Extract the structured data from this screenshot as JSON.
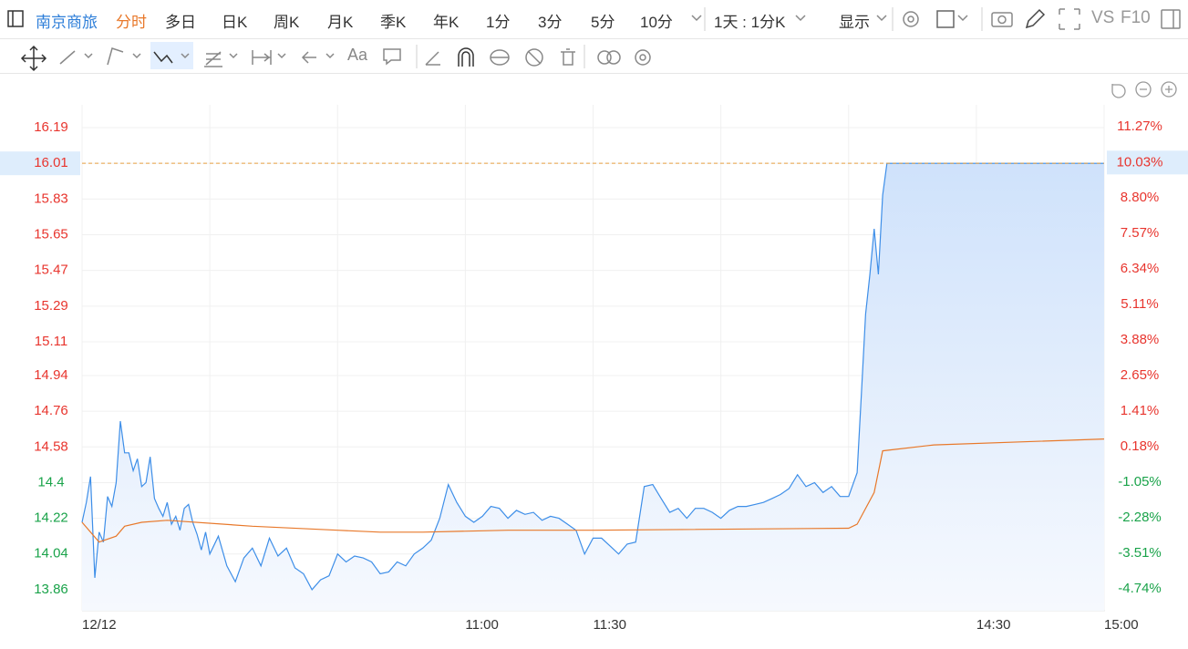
{
  "toolbar": {
    "symbol": "南京商旅",
    "periods": [
      "分时",
      "多日",
      "日K",
      "周K",
      "月K",
      "季K",
      "年K",
      "1分",
      "3分",
      "5分",
      "10分"
    ],
    "range": "1天 : 1分K",
    "display": "显示",
    "vs": "VS",
    "f10": "F10",
    "font_tool": "Aa"
  },
  "chart_data": {
    "type": "line",
    "series": [
      {
        "name": "price",
        "color": "#3d8ee8",
        "fill": true,
        "x": [
          0,
          1,
          2,
          3,
          4,
          5,
          6,
          7,
          8,
          9,
          10,
          11,
          12,
          13,
          14,
          15,
          16,
          17,
          18,
          19,
          20,
          21,
          22,
          23,
          24,
          25,
          26,
          27,
          28,
          29,
          30,
          32,
          34,
          36,
          38,
          40,
          42,
          44,
          46,
          48,
          50,
          52,
          54,
          56,
          58,
          60,
          62,
          64,
          66,
          68,
          70,
          72,
          74,
          76,
          78,
          80,
          82,
          84,
          86,
          88,
          90,
          92,
          94,
          96,
          98,
          100,
          102,
          104,
          106,
          108,
          110,
          112,
          114,
          116,
          118,
          120,
          122,
          124,
          126,
          128,
          130,
          132,
          134,
          136,
          138,
          140,
          142,
          144,
          146,
          148,
          150,
          152,
          154,
          156,
          158,
          160,
          162,
          164,
          166,
          168,
          170,
          172,
          174,
          176,
          178,
          180,
          182,
          183,
          184,
          185,
          186,
          187,
          188,
          189,
          190,
          200,
          210,
          220,
          230,
          240
        ],
        "values": [
          14.2,
          14.3,
          14.43,
          13.92,
          14.15,
          14.1,
          14.33,
          14.28,
          14.4,
          14.71,
          14.55,
          14.55,
          14.46,
          14.52,
          14.38,
          14.4,
          14.53,
          14.32,
          14.27,
          14.23,
          14.3,
          14.19,
          14.23,
          14.16,
          14.27,
          14.29,
          14.2,
          14.14,
          14.06,
          14.15,
          14.04,
          14.13,
          13.98,
          13.9,
          14.02,
          14.07,
          13.98,
          14.12,
          14.03,
          14.07,
          13.97,
          13.94,
          13.86,
          13.91,
          13.93,
          14.04,
          14.0,
          14.03,
          14.02,
          14.0,
          13.94,
          13.95,
          14.0,
          13.98,
          14.04,
          14.07,
          14.11,
          14.22,
          14.39,
          14.3,
          14.23,
          14.2,
          14.23,
          14.28,
          14.27,
          14.22,
          14.26,
          14.24,
          14.25,
          14.21,
          14.23,
          14.22,
          14.19,
          14.16,
          14.04,
          14.12,
          14.12,
          14.08,
          14.04,
          14.09,
          14.1,
          14.38,
          14.39,
          14.32,
          14.25,
          14.27,
          14.22,
          14.27,
          14.27,
          14.25,
          14.22,
          14.26,
          14.28,
          14.28,
          14.29,
          14.3,
          14.32,
          14.34,
          14.37,
          14.44,
          14.38,
          14.4,
          14.35,
          14.38,
          14.33,
          14.33,
          14.45,
          14.85,
          15.25,
          15.45,
          15.68,
          15.45,
          15.85,
          16.01,
          16.01,
          16.01,
          16.01,
          16.01,
          16.01,
          16.01
        ]
      },
      {
        "name": "average",
        "color": "#e8782a",
        "fill": false,
        "x": [
          0,
          4,
          8,
          10,
          14,
          20,
          40,
          60,
          70,
          80,
          100,
          120,
          180,
          182,
          186,
          188,
          200,
          240
        ],
        "values": [
          14.2,
          14.1,
          14.13,
          14.18,
          14.2,
          14.21,
          14.18,
          14.16,
          14.15,
          14.15,
          14.16,
          14.16,
          14.17,
          14.19,
          14.35,
          14.56,
          14.59,
          14.62
        ]
      }
    ],
    "xlim": [
      0,
      240
    ],
    "xticks": [
      {
        "value": 0,
        "label": "12/12"
      },
      {
        "value": 30,
        "label": null
      },
      {
        "value": 60,
        "label": null
      },
      {
        "value": 90,
        "label": "11:00"
      },
      {
        "value": 120,
        "label": "11:30"
      },
      {
        "value": 150,
        "label": null
      },
      {
        "value": 180,
        "label": null
      },
      {
        "value": 210,
        "label": "14:30"
      },
      {
        "value": 240,
        "label": "15:00"
      }
    ],
    "ylim": [
      13.754,
      16.305
    ],
    "yticks": [
      16.19,
      16.01,
      15.83,
      15.65,
      15.47,
      15.29,
      15.11,
      14.94,
      14.76,
      14.58,
      14.4,
      14.22,
      14.04,
      13.86
    ],
    "y2lim": [
      -5.5,
      12.03
    ],
    "y2ticks": [
      {
        "value": 11.27,
        "label": "11.27%"
      },
      {
        "value": 10.03,
        "label": "10.03%"
      },
      {
        "value": 8.8,
        "label": "8.80%"
      },
      {
        "value": 7.57,
        "label": "7.57%"
      },
      {
        "value": 6.34,
        "label": "6.34%"
      },
      {
        "value": 5.11,
        "label": "5.11%"
      },
      {
        "value": 3.88,
        "label": "3.88%"
      },
      {
        "value": 2.65,
        "label": "2.65%"
      },
      {
        "value": 1.41,
        "label": "1.41%"
      },
      {
        "value": 0.18,
        "label": "0.18%"
      },
      {
        "value": -1.05,
        "label": "-1.05%"
      },
      {
        "value": -2.28,
        "label": "-2.28%"
      },
      {
        "value": -3.51,
        "label": "-3.51%"
      },
      {
        "value": -4.74,
        "label": "-4.74%"
      }
    ],
    "grid": true
  }
}
